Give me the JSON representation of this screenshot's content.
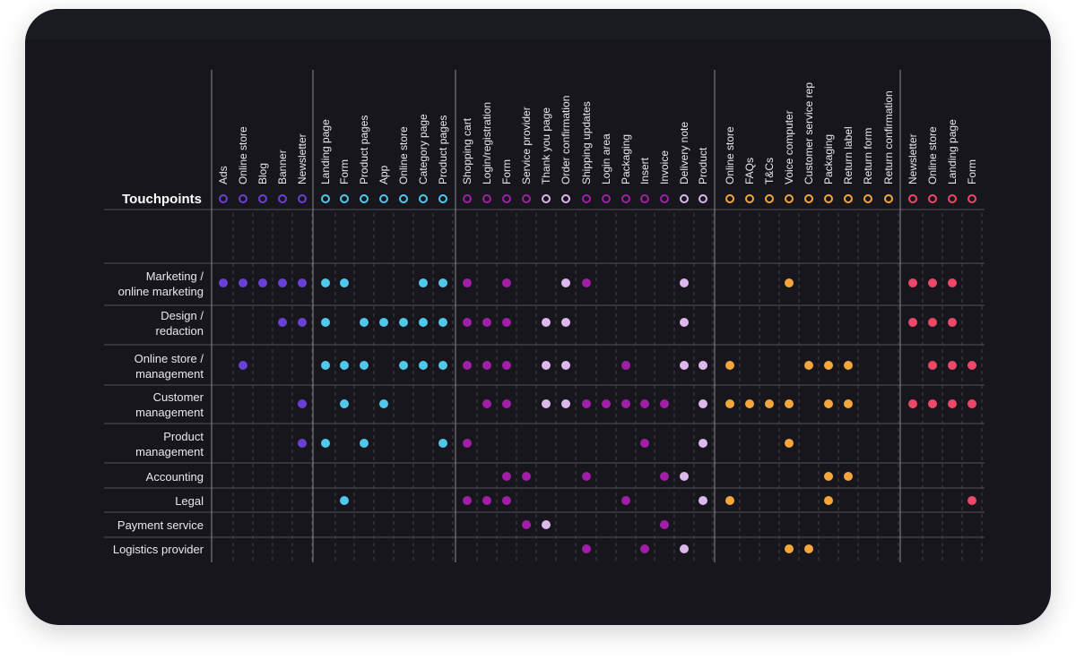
{
  "title": "Touchpoints",
  "colors": {
    "background": "#16161c",
    "grid_solid": "#8a8a94",
    "grid_dashed": "#4a4a55",
    "label": "#e8e8ee"
  },
  "groups": [
    {
      "name": "group-1",
      "color": "#6a3fd6",
      "touchpoints": [
        "Ads",
        "Online store",
        "Blog",
        "Banner",
        "Newsletter"
      ]
    },
    {
      "name": "group-2",
      "color": "#4fc8ec",
      "touchpoints": [
        "Landing page",
        "Form",
        "Product pages",
        "App",
        "Online store",
        "Category page",
        "Product pages"
      ]
    },
    {
      "name": "group-3a",
      "color": "#a01fa6",
      "touchpoints": [
        "Shopping cart",
        "Login/registration",
        "Form",
        "Service provider"
      ]
    },
    {
      "name": "group-3b",
      "color": "#dcb8ec",
      "touchpoints": [
        "Thank you page",
        "Order confirmation"
      ]
    },
    {
      "name": "group-3c",
      "color": "#a01fa6",
      "touchpoints": [
        "Shipping updates",
        "Login area",
        "Packaging",
        "Insert",
        "Invoice"
      ]
    },
    {
      "name": "group-3d",
      "color": "#dcb8ec",
      "touchpoints": [
        "Delivery note",
        "Product"
      ]
    },
    {
      "name": "group-4",
      "color": "#f3a63c",
      "touchpoints": [
        "Online store",
        "FAQs",
        "T&Cs",
        "Voice computer",
        "Customer service rep",
        "Packaging",
        "Return label",
        "Return form",
        "Return confirmation"
      ]
    },
    {
      "name": "group-5",
      "color": "#ef4768",
      "touchpoints": [
        "Newsletter",
        "Online store",
        "Landing page",
        "Form"
      ]
    }
  ],
  "rows": [
    {
      "label": [
        "Marketing /",
        "online marketing"
      ],
      "dots": [
        0,
        1,
        2,
        3,
        4,
        5,
        6,
        10,
        11,
        12,
        14,
        17,
        18,
        23,
        28,
        34,
        35,
        36
      ]
    },
    {
      "label": [
        "Design /",
        "redaction"
      ],
      "dots": [
        3,
        4,
        5,
        7,
        8,
        9,
        10,
        11,
        12,
        13,
        14,
        16,
        17,
        23,
        34,
        35,
        36
      ]
    },
    {
      "label": [
        "Online store /",
        "management"
      ],
      "dots": [
        1,
        5,
        6,
        7,
        9,
        10,
        11,
        12,
        13,
        14,
        16,
        17,
        20,
        23,
        24,
        25,
        29,
        30,
        31,
        35,
        36,
        37
      ]
    },
    {
      "label": [
        "Customer",
        "management"
      ],
      "dots": [
        4,
        6,
        8,
        13,
        14,
        16,
        17,
        18,
        19,
        20,
        21,
        22,
        24,
        25,
        26,
        27,
        28,
        30,
        31,
        34,
        35,
        36,
        37
      ]
    },
    {
      "label": [
        "Product",
        "management"
      ],
      "dots": [
        4,
        5,
        7,
        11,
        12,
        21,
        24,
        28
      ]
    },
    {
      "label": [
        "Accounting"
      ],
      "dots": [
        14,
        15,
        18,
        22,
        23,
        30,
        31
      ]
    },
    {
      "label": [
        "Legal"
      ],
      "dots": [
        6,
        12,
        13,
        14,
        20,
        24,
        25,
        30,
        37
      ]
    },
    {
      "label": [
        "Payment service"
      ],
      "dots": [
        15,
        16,
        22
      ]
    },
    {
      "label": [
        "Logistics provider"
      ],
      "dots": [
        18,
        21,
        23,
        28,
        29
      ]
    }
  ]
}
